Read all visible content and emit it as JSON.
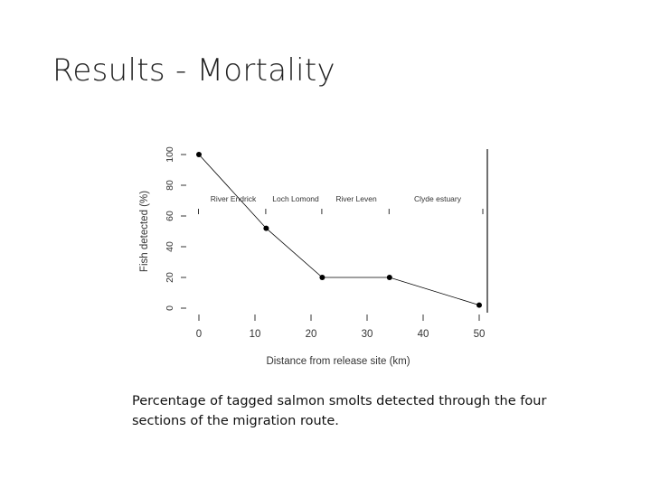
{
  "slide": {
    "title": "Results - Mortality",
    "caption_line1": "Percentage of tagged salmon smolts detected through the four",
    "caption_line2": "sections of the migration route."
  },
  "chart_data": {
    "type": "line",
    "x": [
      0,
      12,
      22,
      34,
      50
    ],
    "y": [
      100,
      52,
      20,
      20,
      2
    ],
    "xlabel": "Distance from release site (km)",
    "ylabel": "Fish detected (%)",
    "xticks": [
      0,
      10,
      20,
      30,
      40,
      50
    ],
    "yticks": [
      0,
      20,
      40,
      60,
      80,
      100
    ],
    "xlim": [
      0,
      50
    ],
    "ylim": [
      0,
      100
    ],
    "grid": false,
    "series_color": "#000000",
    "sections": [
      "River Endrick",
      "Loch Lomond",
      "River Leven",
      "Clyde estuary"
    ]
  }
}
